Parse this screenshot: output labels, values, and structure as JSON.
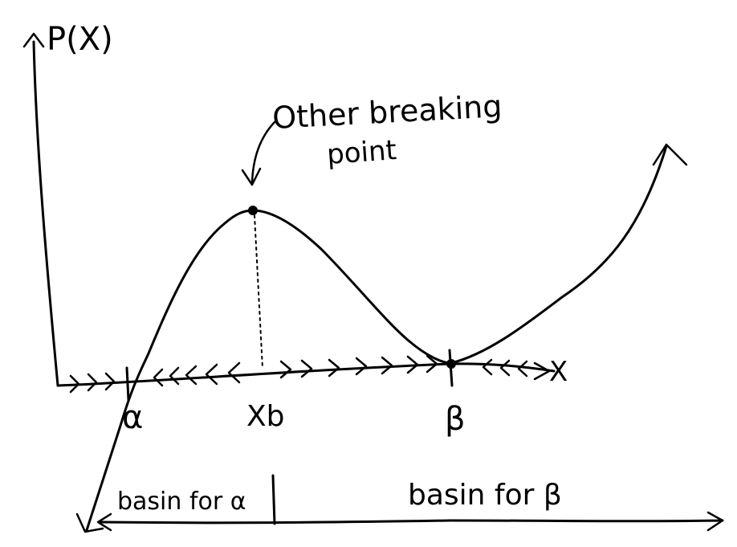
{
  "labels": {
    "y_axis": "P(X)",
    "x_axis": "X",
    "annotation_line1": "Other breaking",
    "annotation_line2": "point",
    "alpha": "α",
    "xb": "Xb",
    "beta": "β",
    "basin_alpha": "basin for α",
    "basin_beta": "basin for β"
  }
}
